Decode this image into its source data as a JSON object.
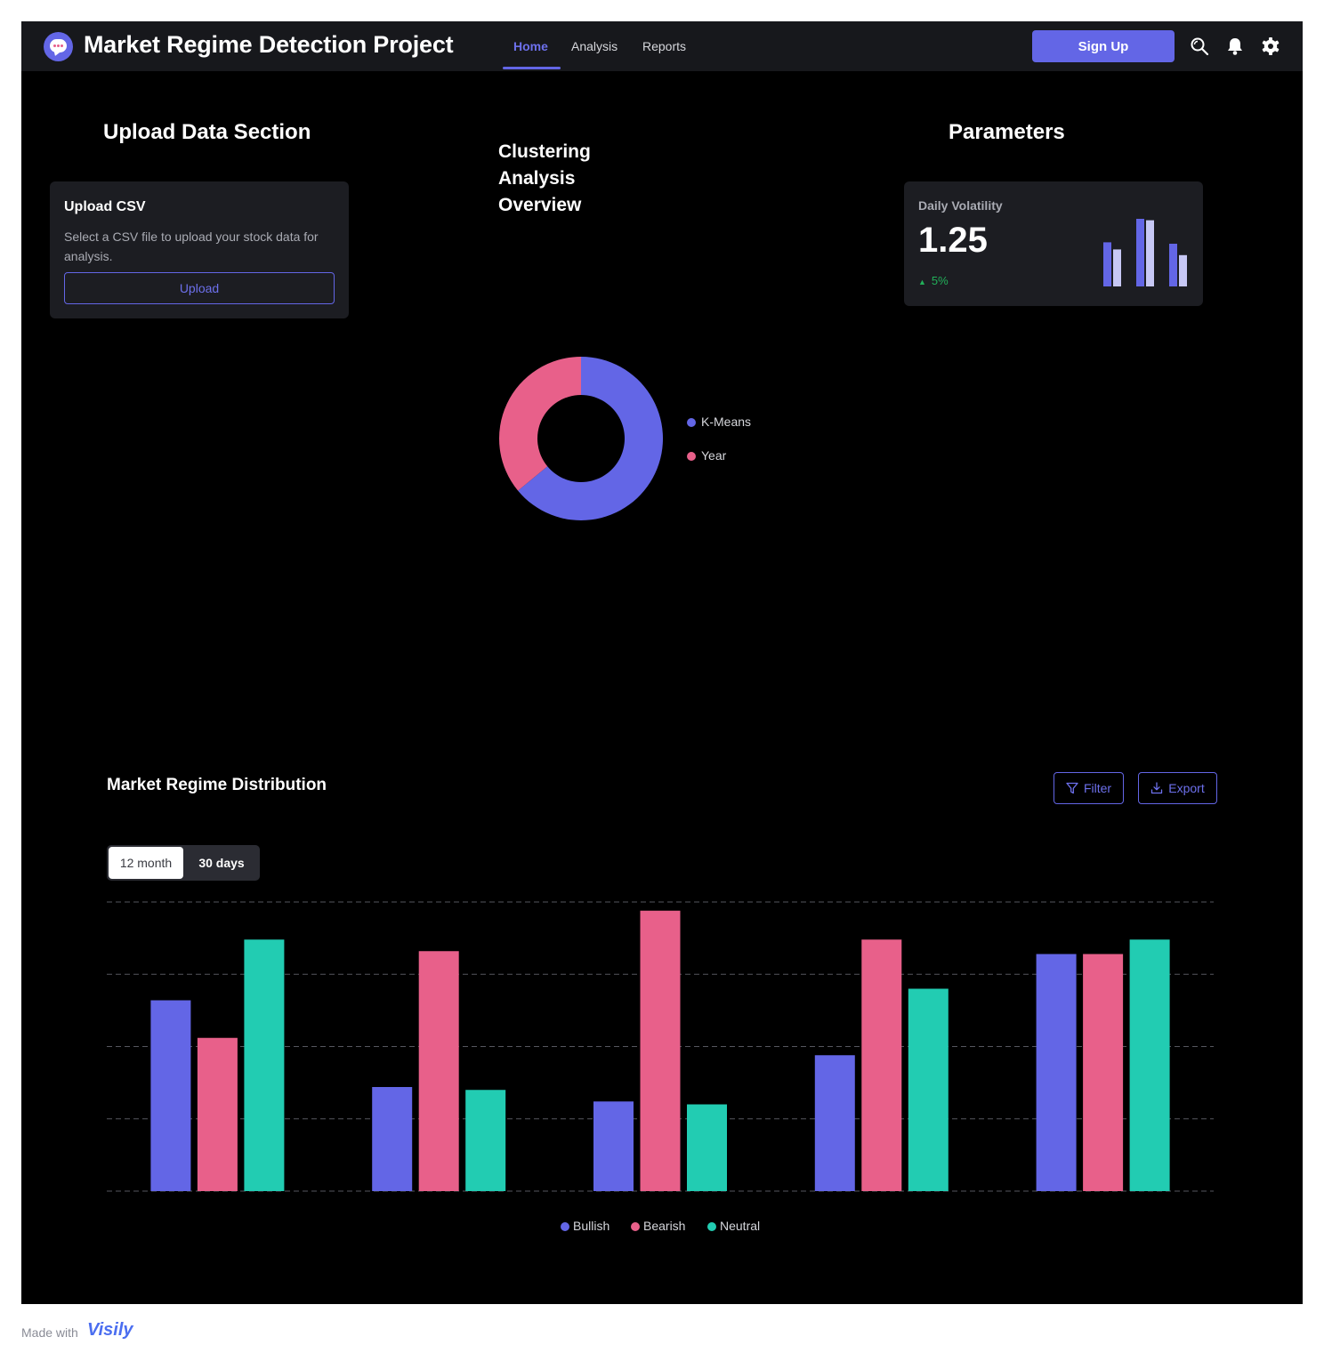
{
  "header": {
    "title": "Market Regime Detection Project",
    "tabs": [
      {
        "label": "Home",
        "active": true
      },
      {
        "label": "Analysis",
        "active": false
      },
      {
        "label": "Reports",
        "active": false
      }
    ],
    "signup_label": "Sign Up",
    "icons": [
      "search-icon",
      "bell-icon",
      "gear-icon"
    ]
  },
  "upload": {
    "section_title": "Upload Data Section",
    "card_title": "Upload CSV",
    "description": "Select a CSV file to upload your stock data for analysis.",
    "button_label": "Upload"
  },
  "clustering": {
    "title": "Clustering Analysis Overview",
    "legend": [
      "K-Means",
      "Year"
    ]
  },
  "parameters": {
    "section_title": "Parameters",
    "metric_label": "Daily Volatility",
    "metric_value": "1.25",
    "change": "5%",
    "change_direction": "up"
  },
  "distribution": {
    "title": "Market Regime Distribution",
    "filter_label": "Filter",
    "export_label": "Export",
    "period_options": [
      "12 month",
      "30 days"
    ],
    "selected_period": "12 month"
  },
  "footer": {
    "made_with": "Made with",
    "brand": "Visily"
  },
  "colors": {
    "accent": "#6366e6",
    "pink": "#e8608a",
    "teal": "#22ccb2",
    "light_purple": "#c7c8f5",
    "positive": "#22b05a"
  },
  "chart_data": [
    {
      "type": "pie",
      "title": "",
      "donut": true,
      "categories": [
        "K-Means",
        "Year"
      ],
      "values": [
        64,
        36
      ],
      "colors": [
        "#6366e6",
        "#e8608a"
      ]
    },
    {
      "type": "bar",
      "title": "",
      "sparkline": true,
      "categories": [
        "1",
        "2",
        "3"
      ],
      "series": [
        {
          "values": [
            62,
            95,
            60
          ],
          "color": "#6366e6"
        },
        {
          "values": [
            52,
            93,
            44
          ],
          "color": "#c7c8f5"
        }
      ]
    },
    {
      "type": "bar",
      "title": "",
      "xlabel": "",
      "ylabel": "",
      "grid": true,
      "legend": "bottom-center",
      "ylim": [
        0,
        100
      ],
      "categories": [
        "1",
        "2",
        "3",
        "4",
        "5"
      ],
      "series": [
        {
          "name": "Bullish",
          "color": "#6366e6",
          "values": [
            66,
            36,
            31,
            47,
            82
          ]
        },
        {
          "name": "Bearish",
          "color": "#e8608a",
          "values": [
            53,
            83,
            97,
            87,
            82
          ]
        },
        {
          "name": "Neutral",
          "color": "#22ccb2",
          "values": [
            87,
            35,
            30,
            70,
            87
          ]
        }
      ]
    }
  ]
}
